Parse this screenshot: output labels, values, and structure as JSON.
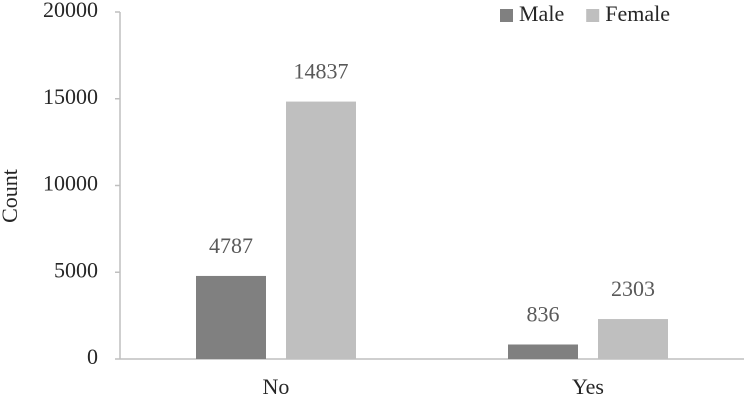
{
  "chart_data": {
    "type": "bar",
    "y_label": "Count",
    "categories": [
      "No",
      "Yes"
    ],
    "series": [
      {
        "name": "Male",
        "color": "#808080",
        "values": [
          4787,
          836
        ]
      },
      {
        "name": "Female",
        "color": "#bfbfbf",
        "values": [
          14837,
          2303
        ]
      }
    ],
    "ylim": [
      0,
      20000
    ],
    "yticks": [
      0,
      5000,
      10000,
      15000,
      20000
    ],
    "grid": false,
    "legend": "top-right"
  }
}
